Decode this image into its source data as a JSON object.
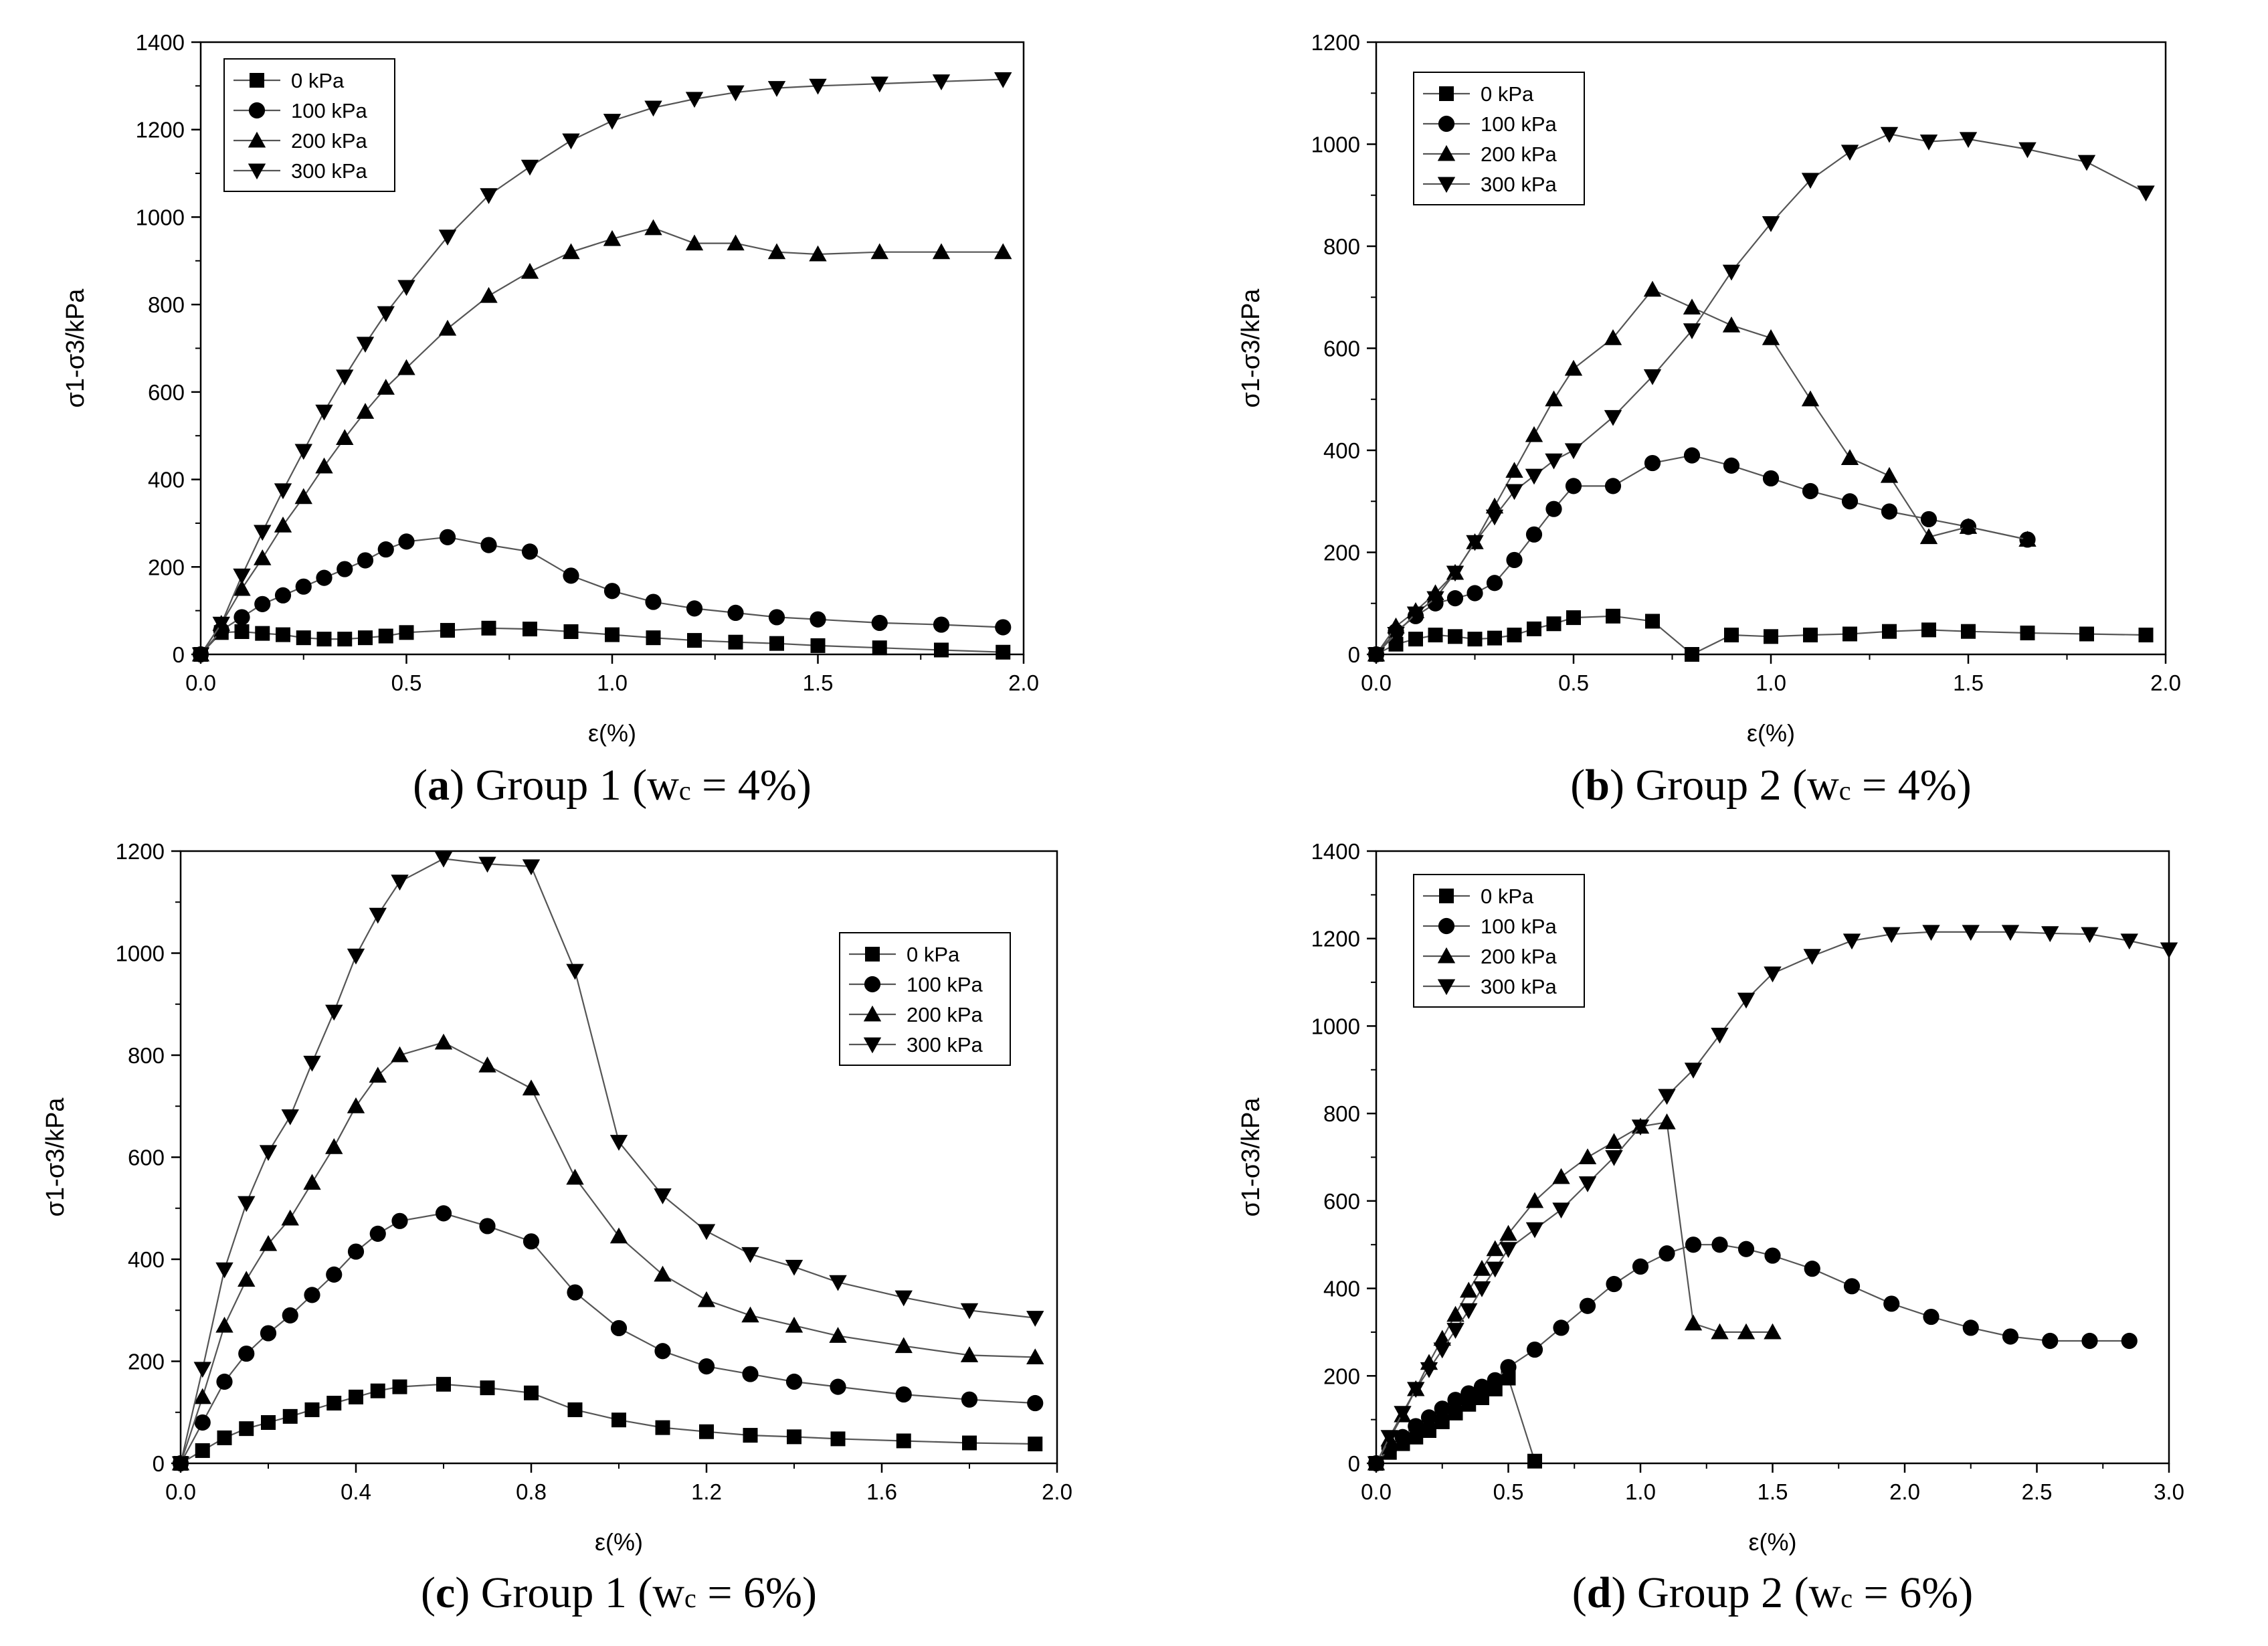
{
  "chart_data": [
    {
      "panel": "a",
      "type": "line",
      "caption_label": "a",
      "caption_text": "Group 1 (wc = 4%)",
      "xlabel": "ε(%)",
      "ylabel": "σ1-σ3/kPa",
      "xlim": [
        0,
        2.0
      ],
      "ylim": [
        0,
        1400
      ],
      "xticks": [
        "0.0",
        "0.5",
        "1.0",
        "1.5",
        "2.0"
      ],
      "yticks": [
        "0",
        "200",
        "400",
        "600",
        "800",
        "1000",
        "1200",
        "1400"
      ],
      "legend_position": "top-left",
      "series": [
        {
          "name": "0 kPa",
          "marker": "square",
          "x": [
            0,
            0.05,
            0.1,
            0.15,
            0.2,
            0.25,
            0.3,
            0.35,
            0.4,
            0.45,
            0.5,
            0.6,
            0.7,
            0.8,
            0.9,
            1.0,
            1.1,
            1.2,
            1.3,
            1.4,
            1.5,
            1.65,
            1.8,
            1.95
          ],
          "y": [
            0,
            50,
            52,
            48,
            45,
            38,
            35,
            35,
            38,
            42,
            50,
            55,
            60,
            58,
            52,
            45,
            38,
            32,
            28,
            25,
            20,
            15,
            10,
            5
          ]
        },
        {
          "name": "100 kPa",
          "marker": "circle",
          "x": [
            0,
            0.05,
            0.1,
            0.15,
            0.2,
            0.25,
            0.3,
            0.35,
            0.4,
            0.45,
            0.5,
            0.6,
            0.7,
            0.8,
            0.9,
            1.0,
            1.1,
            1.2,
            1.3,
            1.4,
            1.5,
            1.65,
            1.8,
            1.95
          ],
          "y": [
            0,
            55,
            85,
            115,
            135,
            155,
            175,
            195,
            215,
            240,
            258,
            268,
            250,
            235,
            180,
            145,
            120,
            105,
            95,
            85,
            80,
            72,
            68,
            62
          ]
        },
        {
          "name": "200 kPa",
          "marker": "triangle-up",
          "x": [
            0,
            0.05,
            0.1,
            0.15,
            0.2,
            0.25,
            0.3,
            0.35,
            0.4,
            0.45,
            0.5,
            0.6,
            0.7,
            0.8,
            0.9,
            1.0,
            1.1,
            1.2,
            1.3,
            1.4,
            1.5,
            1.65,
            1.8,
            1.95
          ],
          "y": [
            0,
            70,
            150,
            220,
            295,
            360,
            430,
            495,
            555,
            610,
            655,
            745,
            820,
            875,
            920,
            950,
            975,
            940,
            940,
            920,
            915,
            920,
            920,
            920
          ]
        },
        {
          "name": "300 kPa",
          "marker": "triangle-down",
          "x": [
            0,
            0.05,
            0.1,
            0.15,
            0.2,
            0.25,
            0.3,
            0.35,
            0.4,
            0.45,
            0.5,
            0.6,
            0.7,
            0.8,
            0.9,
            1.0,
            1.1,
            1.2,
            1.3,
            1.4,
            1.5,
            1.65,
            1.8,
            1.95
          ],
          "y": [
            0,
            70,
            180,
            280,
            375,
            465,
            555,
            635,
            710,
            780,
            840,
            955,
            1050,
            1115,
            1175,
            1220,
            1250,
            1270,
            1285,
            1295,
            1300,
            1305,
            1310,
            1315
          ]
        }
      ]
    },
    {
      "panel": "b",
      "type": "line",
      "caption_label": "b",
      "caption_text": "Group 2 (wc = 4%)",
      "xlabel": "ε(%)",
      "ylabel": "σ1-σ3/kPa",
      "xlim": [
        0,
        2.0
      ],
      "ylim": [
        0,
        1200
      ],
      "xticks": [
        "0.0",
        "0.5",
        "1.0",
        "1.5",
        "2.0"
      ],
      "yticks": [
        "0",
        "200",
        "400",
        "600",
        "800",
        "1000",
        "1200"
      ],
      "legend_position": "top-left",
      "series": [
        {
          "name": "0 kPa",
          "marker": "square",
          "x": [
            0,
            0.05,
            0.1,
            0.15,
            0.2,
            0.25,
            0.3,
            0.35,
            0.4,
            0.45,
            0.5,
            0.6,
            0.7,
            0.8,
            0.9,
            1.0,
            1.1,
            1.2,
            1.3,
            1.4,
            1.5,
            1.65,
            1.8,
            1.95
          ],
          "y": [
            0,
            20,
            30,
            38,
            35,
            30,
            32,
            38,
            50,
            60,
            72,
            75,
            65,
            0,
            38,
            35,
            38,
            40,
            45,
            48,
            45,
            42,
            40,
            38
          ]
        },
        {
          "name": "100 kPa",
          "marker": "circle",
          "x": [
            0,
            0.05,
            0.1,
            0.15,
            0.2,
            0.25,
            0.3,
            0.35,
            0.4,
            0.45,
            0.5,
            0.6,
            0.7,
            0.8,
            0.9,
            1.0,
            1.1,
            1.2,
            1.3,
            1.4,
            1.5,
            1.65
          ],
          "y": [
            0,
            45,
            75,
            100,
            110,
            120,
            140,
            185,
            235,
            285,
            330,
            330,
            375,
            390,
            370,
            345,
            320,
            300,
            280,
            265,
            250,
            225
          ]
        },
        {
          "name": "200 kPa",
          "marker": "triangle-up",
          "x": [
            0,
            0.05,
            0.1,
            0.15,
            0.2,
            0.25,
            0.3,
            0.35,
            0.4,
            0.45,
            0.5,
            0.6,
            0.7,
            0.8,
            0.9,
            1.0,
            1.1,
            1.2,
            1.3,
            1.4,
            1.5,
            1.65
          ],
          "y": [
            0,
            55,
            85,
            120,
            160,
            220,
            290,
            360,
            430,
            500,
            560,
            620,
            715,
            680,
            645,
            620,
            500,
            385,
            350,
            230,
            250,
            225
          ]
        },
        {
          "name": "300 kPa",
          "marker": "triangle-down",
          "x": [
            0,
            0.05,
            0.1,
            0.15,
            0.2,
            0.25,
            0.3,
            0.35,
            0.4,
            0.45,
            0.5,
            0.6,
            0.7,
            0.8,
            0.9,
            1.0,
            1.1,
            1.2,
            1.3,
            1.4,
            1.5,
            1.65,
            1.8,
            1.95
          ],
          "y": [
            0,
            40,
            80,
            110,
            160,
            220,
            270,
            320,
            350,
            380,
            400,
            465,
            545,
            635,
            750,
            845,
            930,
            985,
            1020,
            1005,
            1010,
            990,
            965,
            905
          ]
        }
      ]
    },
    {
      "panel": "c",
      "type": "line",
      "caption_label": "c",
      "caption_text": "Group 1 (wc = 6%)",
      "xlabel": "ε(%)",
      "ylabel": "σ1-σ3/kPa",
      "xlim": [
        0,
        2.0
      ],
      "ylim": [
        0,
        1200
      ],
      "xticks": [
        "0.0",
        "0.4",
        "0.8",
        "1.2",
        "1.6",
        "2.0"
      ],
      "yticks": [
        "0",
        "200",
        "400",
        "600",
        "800",
        "1000",
        "1200"
      ],
      "legend_position": "top-right",
      "series": [
        {
          "name": "0 kPa",
          "marker": "square",
          "x": [
            0,
            0.05,
            0.1,
            0.15,
            0.2,
            0.25,
            0.3,
            0.35,
            0.4,
            0.45,
            0.5,
            0.6,
            0.7,
            0.8,
            0.9,
            1.0,
            1.1,
            1.2,
            1.3,
            1.4,
            1.5,
            1.65,
            1.8,
            1.95
          ],
          "y": [
            0,
            25,
            50,
            68,
            80,
            92,
            105,
            118,
            130,
            142,
            150,
            155,
            148,
            138,
            105,
            85,
            70,
            62,
            55,
            52,
            48,
            44,
            40,
            38
          ]
        },
        {
          "name": "100 kPa",
          "marker": "circle",
          "x": [
            0,
            0.05,
            0.1,
            0.15,
            0.2,
            0.25,
            0.3,
            0.35,
            0.4,
            0.45,
            0.5,
            0.6,
            0.7,
            0.8,
            0.9,
            1.0,
            1.1,
            1.2,
            1.3,
            1.4,
            1.5,
            1.65,
            1.8,
            1.95
          ],
          "y": [
            0,
            80,
            160,
            215,
            255,
            290,
            330,
            370,
            415,
            450,
            475,
            490,
            465,
            435,
            335,
            265,
            220,
            190,
            175,
            160,
            150,
            135,
            125,
            118
          ]
        },
        {
          "name": "200 kPa",
          "marker": "triangle-up",
          "x": [
            0,
            0.05,
            0.1,
            0.15,
            0.2,
            0.25,
            0.3,
            0.35,
            0.4,
            0.45,
            0.5,
            0.6,
            0.7,
            0.8,
            0.9,
            1.0,
            1.1,
            1.2,
            1.3,
            1.4,
            1.5,
            1.65,
            1.8,
            1.95
          ],
          "y": [
            0,
            130,
            270,
            360,
            430,
            480,
            550,
            620,
            700,
            760,
            800,
            825,
            780,
            735,
            560,
            445,
            370,
            320,
            290,
            270,
            250,
            230,
            212,
            208
          ]
        },
        {
          "name": "300 kPa",
          "marker": "triangle-down",
          "x": [
            0,
            0.05,
            0.1,
            0.15,
            0.2,
            0.25,
            0.3,
            0.35,
            0.4,
            0.45,
            0.5,
            0.6,
            0.7,
            0.8,
            0.9,
            1.0,
            1.1,
            1.2,
            1.3,
            1.4,
            1.5,
            1.65,
            1.8,
            1.95
          ],
          "y": [
            0,
            185,
            380,
            510,
            610,
            680,
            785,
            885,
            995,
            1075,
            1140,
            1185,
            1175,
            1170,
            965,
            630,
            525,
            455,
            410,
            385,
            355,
            325,
            300,
            285
          ]
        }
      ]
    },
    {
      "panel": "d",
      "type": "line",
      "caption_label": "d",
      "caption_text": "Group 2 (wc = 6%)",
      "xlabel": "ε(%)",
      "ylabel": "σ1-σ3/kPa",
      "xlim": [
        0,
        3.0
      ],
      "ylim": [
        0,
        1400
      ],
      "xticks": [
        "0.0",
        "0.5",
        "1.0",
        "1.5",
        "2.0",
        "2.5",
        "3.0"
      ],
      "yticks": [
        "0",
        "200",
        "400",
        "600",
        "800",
        "1000",
        "1200",
        "1400"
      ],
      "legend_position": "top-left",
      "series": [
        {
          "name": "0 kPa",
          "marker": "square",
          "x": [
            0,
            0.05,
            0.1,
            0.15,
            0.2,
            0.25,
            0.3,
            0.35,
            0.4,
            0.45,
            0.5,
            0.6
          ],
          "y": [
            0,
            25,
            45,
            60,
            75,
            95,
            115,
            135,
            150,
            170,
            195,
            5
          ]
        },
        {
          "name": "100 kPa",
          "marker": "circle",
          "x": [
            0,
            0.05,
            0.1,
            0.15,
            0.2,
            0.25,
            0.3,
            0.35,
            0.4,
            0.45,
            0.5,
            0.6,
            0.7,
            0.8,
            0.9,
            1.0,
            1.1,
            1.2,
            1.3,
            1.4,
            1.5,
            1.65,
            1.8,
            1.95,
            2.1,
            2.25,
            2.4,
            2.55,
            2.7,
            2.85
          ],
          "y": [
            0,
            35,
            60,
            85,
            105,
            125,
            145,
            160,
            175,
            190,
            220,
            260,
            310,
            360,
            410,
            450,
            480,
            500,
            500,
            490,
            475,
            445,
            405,
            365,
            335,
            310,
            290,
            280,
            280,
            280
          ]
        },
        {
          "name": "200 kPa",
          "marker": "triangle-up",
          "x": [
            0,
            0.05,
            0.1,
            0.15,
            0.2,
            0.25,
            0.3,
            0.35,
            0.4,
            0.45,
            0.5,
            0.6,
            0.7,
            0.8,
            0.9,
            1.0,
            1.1,
            1.2,
            1.3,
            1.4,
            1.5
          ],
          "y": [
            0,
            55,
            110,
            170,
            230,
            285,
            340,
            395,
            445,
            490,
            525,
            600,
            655,
            700,
            735,
            770,
            780,
            320,
            300,
            300,
            300
          ]
        },
        {
          "name": "300 kPa",
          "marker": "triangle-down",
          "x": [
            0,
            0.05,
            0.1,
            0.15,
            0.2,
            0.25,
            0.3,
            0.35,
            0.4,
            0.45,
            0.5,
            0.6,
            0.7,
            0.8,
            0.9,
            1.0,
            1.1,
            1.2,
            1.3,
            1.4,
            1.5,
            1.65,
            1.8,
            1.95,
            2.1,
            2.25,
            2.4,
            2.55,
            2.7,
            2.85,
            3.0
          ],
          "y": [
            0,
            60,
            115,
            170,
            215,
            260,
            305,
            350,
            400,
            445,
            490,
            535,
            580,
            640,
            700,
            770,
            840,
            900,
            980,
            1060,
            1120,
            1160,
            1195,
            1210,
            1215,
            1215,
            1215,
            1212,
            1210,
            1195,
            1175
          ]
        }
      ]
    }
  ]
}
